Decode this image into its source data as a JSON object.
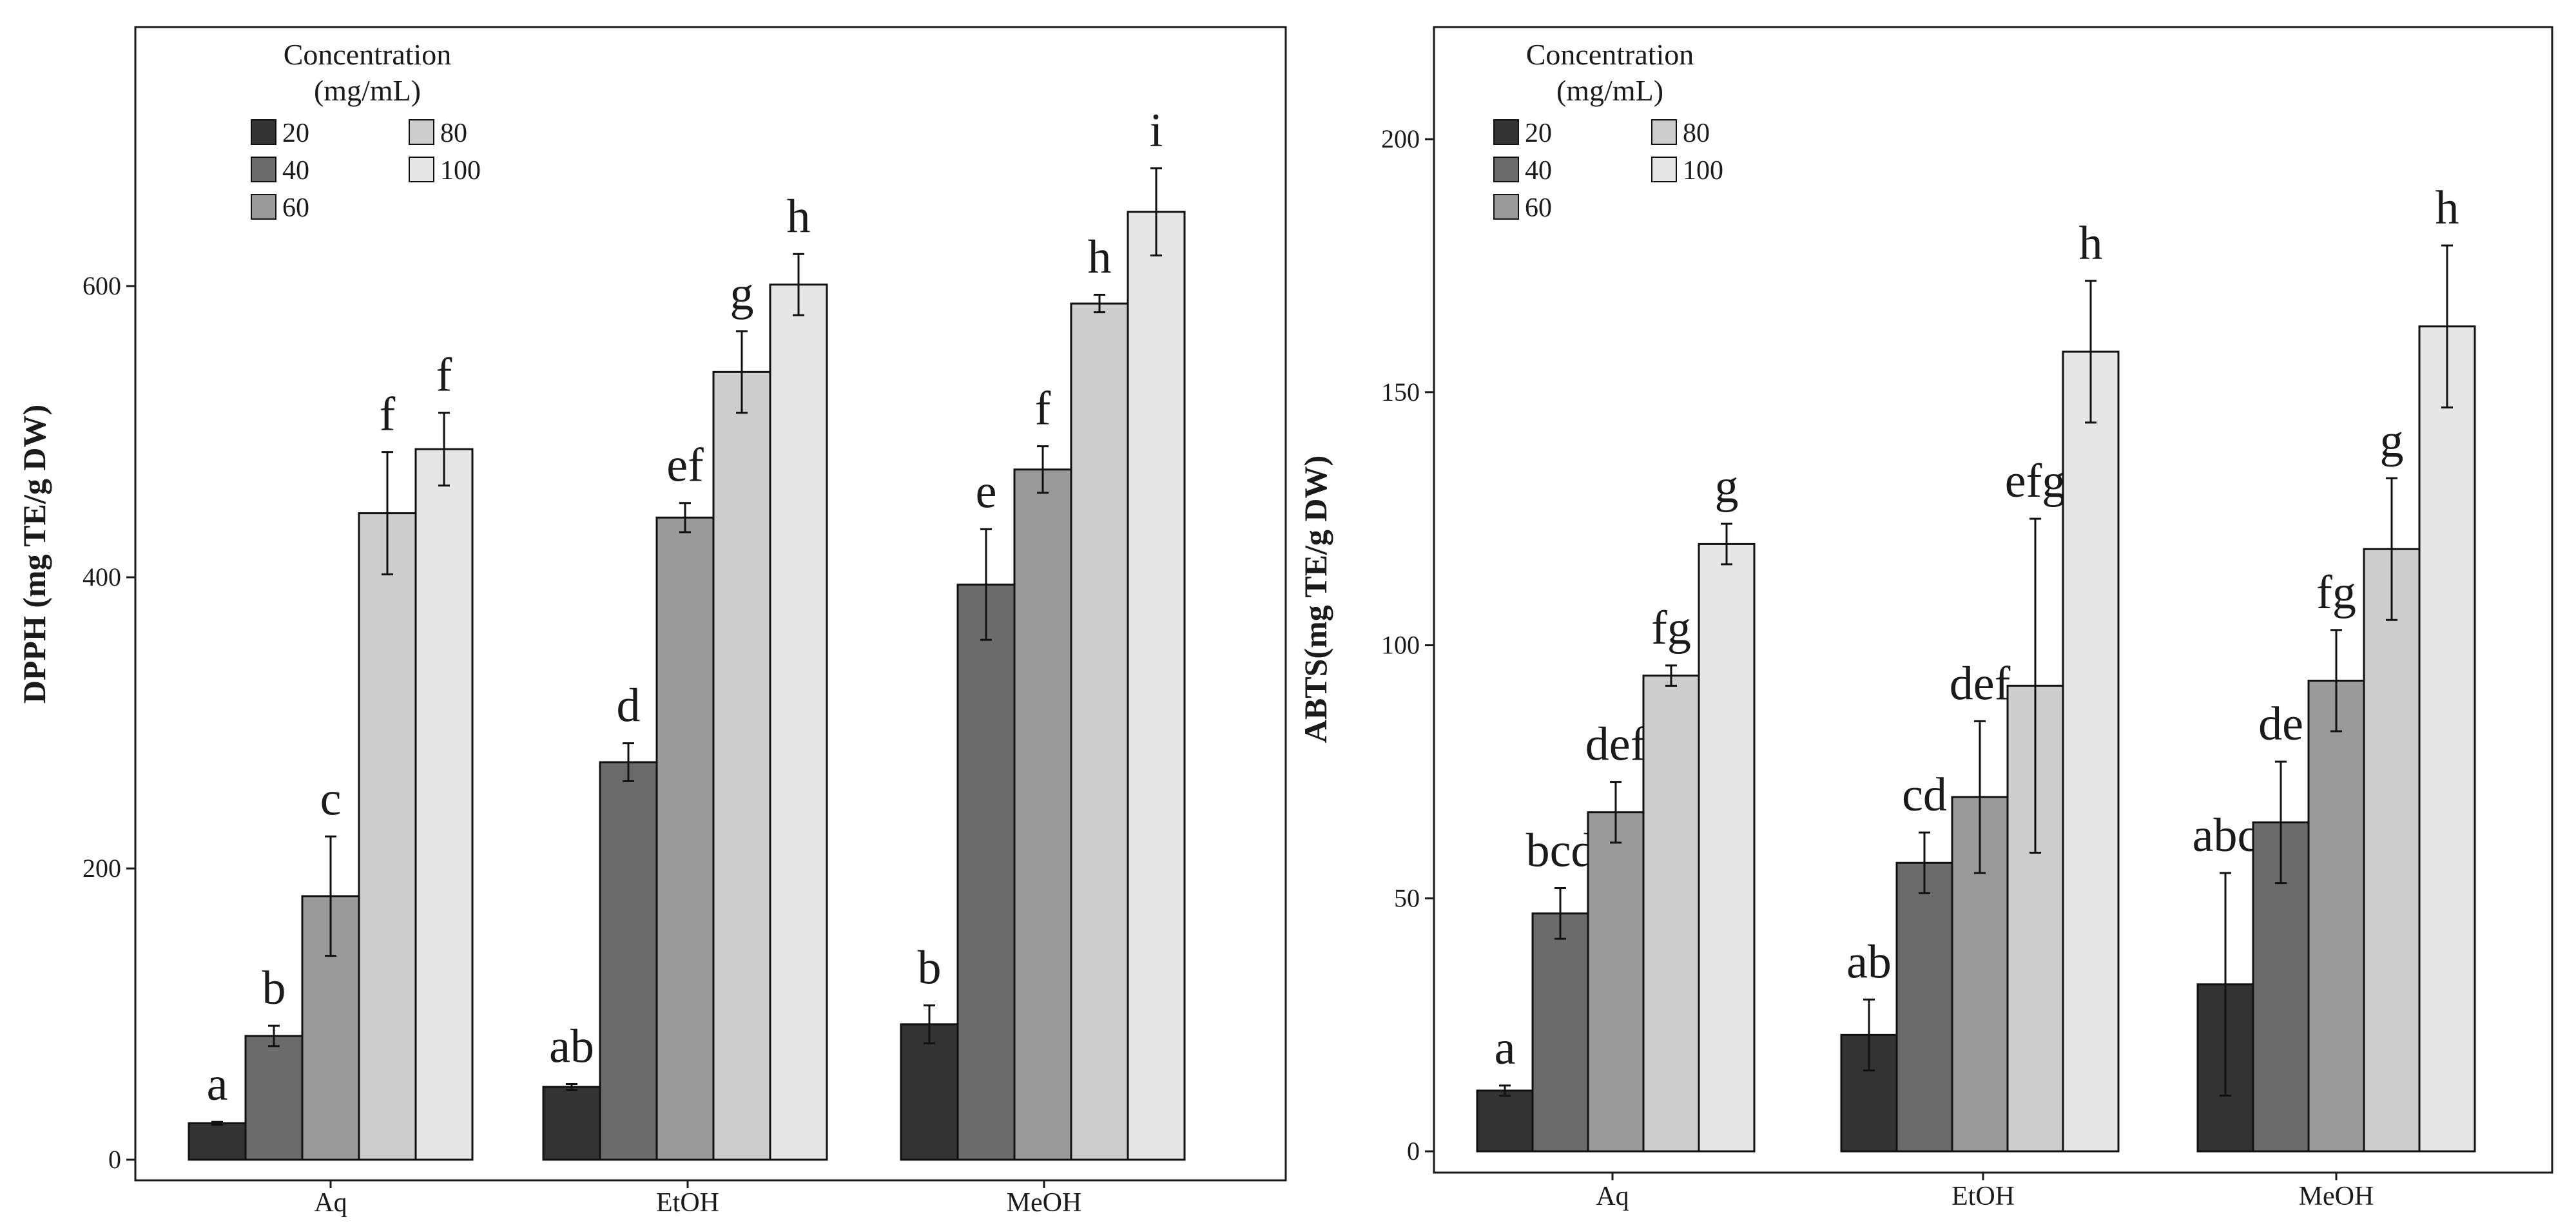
{
  "figure": {
    "legend_title_line1": "Concentration",
    "legend_title_line2": "(mg/mL)"
  },
  "series_colors": {
    "20": "#333333",
    "40": "#6b6b6b",
    "60": "#9a9a9a",
    "80": "#cdcdcd",
    "100": "#e6e6e6"
  },
  "chart_data": [
    {
      "type": "bar",
      "title": "",
      "xlabel": "",
      "ylabel": "DPPH (mg TE/g DW)",
      "ylim": [
        0,
        800
      ],
      "yticks": [
        0,
        200,
        400,
        600
      ],
      "categories": [
        "Aq",
        "EtOH",
        "MeOH"
      ],
      "legend_title": "Concentration (mg/mL)",
      "legend_position": "top-left",
      "series": [
        {
          "name": "20",
          "values": [
            25,
            50,
            93
          ],
          "errors": [
            1,
            2,
            13
          ],
          "letters": [
            "a",
            "ab",
            "b"
          ]
        },
        {
          "name": "40",
          "values": [
            85,
            273,
            395
          ],
          "errors": [
            7,
            13,
            38
          ],
          "letters": [
            "b",
            "d",
            "e"
          ]
        },
        {
          "name": "60",
          "values": [
            181,
            441,
            474
          ],
          "errors": [
            41,
            10,
            16
          ],
          "letters": [
            "c",
            "ef",
            "f"
          ]
        },
        {
          "name": "80",
          "values": [
            444,
            541,
            588
          ],
          "errors": [
            42,
            28,
            6
          ],
          "letters": [
            "f",
            "g",
            "h"
          ]
        },
        {
          "name": "100",
          "values": [
            488,
            601,
            651
          ],
          "errors": [
            25,
            21,
            30
          ],
          "letters": [
            "f",
            "h",
            "i"
          ]
        }
      ]
    },
    {
      "type": "bar",
      "title": "",
      "xlabel": "",
      "ylabel": "ABTS(mg TE/g DW)",
      "ylim": [
        0,
        225
      ],
      "yticks": [
        0,
        50,
        100,
        150,
        200
      ],
      "categories": [
        "Aq",
        "EtOH",
        "MeOH"
      ],
      "legend_title": "Concentration (mg/mL)",
      "legend_position": "top-left",
      "series": [
        {
          "name": "20",
          "values": [
            12,
            23,
            33
          ],
          "errors": [
            1,
            7,
            22
          ],
          "letters": [
            "a",
            "ab",
            "abc"
          ]
        },
        {
          "name": "40",
          "values": [
            47,
            57,
            65
          ],
          "errors": [
            5,
            6,
            12
          ],
          "letters": [
            "bcd",
            "cd",
            "de"
          ]
        },
        {
          "name": "60",
          "values": [
            67,
            70,
            93
          ],
          "errors": [
            6,
            15,
            10
          ],
          "letters": [
            "def",
            "def",
            "fg"
          ]
        },
        {
          "name": "80",
          "values": [
            94,
            92,
            119
          ],
          "errors": [
            2,
            33,
            14
          ],
          "letters": [
            "fg",
            "efg",
            "g"
          ]
        },
        {
          "name": "100",
          "values": [
            120,
            158,
            163
          ],
          "errors": [
            4,
            14,
            16
          ],
          "letters": [
            "g",
            "h",
            "h"
          ]
        }
      ]
    }
  ]
}
